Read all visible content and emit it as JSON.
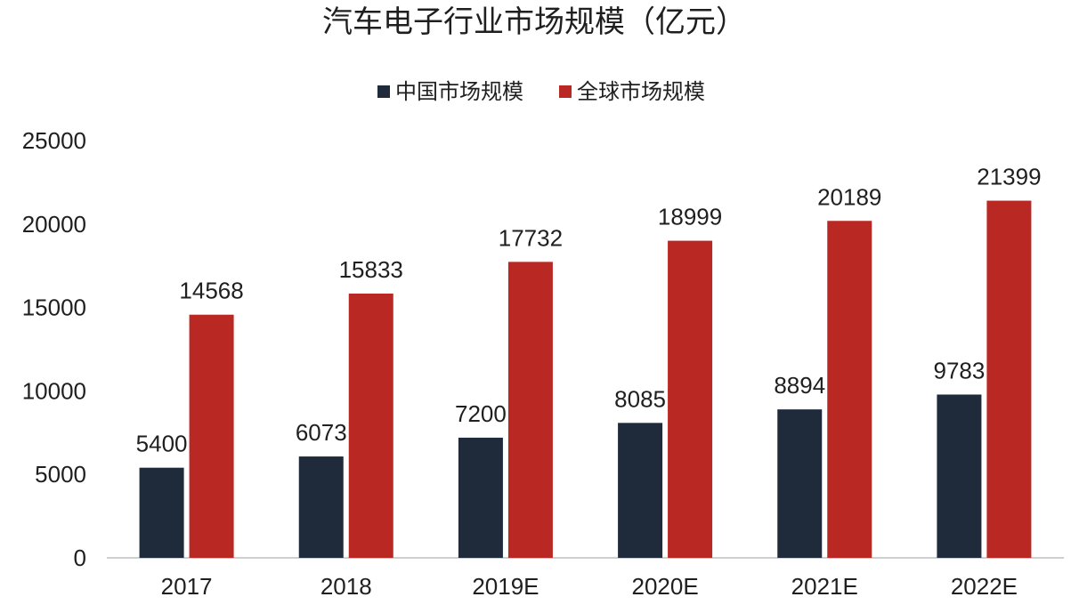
{
  "chart_data": {
    "type": "bar",
    "title": "汽车电子行业市场规模（亿元）",
    "categories": [
      "2017",
      "2018",
      "2019E",
      "2020E",
      "2021E",
      "2022E"
    ],
    "series": [
      {
        "name": "中国市场规模",
        "color": "#1f2a3a",
        "values": [
          5400,
          6073,
          7200,
          8085,
          8894,
          9783
        ]
      },
      {
        "name": "全球市场规模",
        "color": "#ba2823",
        "values": [
          14568,
          15833,
          17732,
          18999,
          20189,
          21399
        ]
      }
    ],
    "ylim": [
      0,
      25000
    ],
    "yticks": [
      0,
      5000,
      10000,
      15000,
      20000,
      25000
    ],
    "grid": false,
    "legend": "top-center",
    "data_labels": true,
    "xlabel": "",
    "ylabel": ""
  }
}
